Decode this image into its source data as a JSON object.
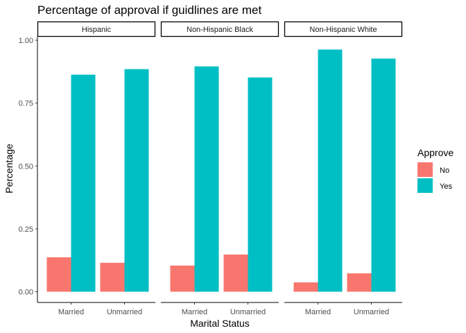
{
  "chart_data": {
    "type": "bar",
    "title": "Percentage of approval if guidlines are met",
    "xlabel": "Marital Status",
    "ylabel": "Percentage",
    "ylim": [
      0,
      1
    ],
    "yticks": [
      "0.00",
      "0.25",
      "0.50",
      "0.75",
      "1.00"
    ],
    "categories": [
      "Married",
      "Unmarried"
    ],
    "legend": {
      "title": "Approve",
      "position": "right",
      "entries": [
        {
          "label": "No",
          "color": "#F8766D"
        },
        {
          "label": "Yes",
          "color": "#00BFC4"
        }
      ]
    },
    "facets": [
      {
        "label": "Hispanic",
        "series": [
          {
            "name": "No",
            "values": [
              0.137,
              0.115
            ]
          },
          {
            "name": "Yes",
            "values": [
              0.863,
              0.885
            ]
          }
        ]
      },
      {
        "label": "Non-Hispanic Black",
        "series": [
          {
            "name": "No",
            "values": [
              0.104,
              0.148
            ]
          },
          {
            "name": "Yes",
            "values": [
              0.896,
              0.852
            ]
          }
        ]
      },
      {
        "label": "Non-Hispanic White",
        "series": [
          {
            "name": "No",
            "values": [
              0.037,
              0.073
            ]
          },
          {
            "name": "Yes",
            "values": [
              0.963,
              0.927
            ]
          }
        ]
      }
    ],
    "grid": false
  }
}
